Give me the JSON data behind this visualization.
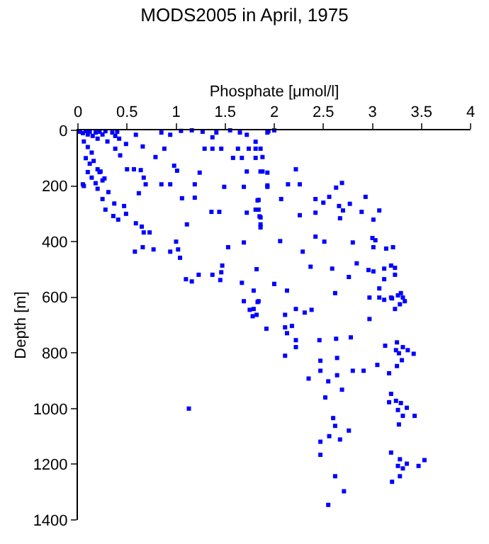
{
  "chart_data": {
    "type": "scatter",
    "title": "MODS2005 in April, 1975",
    "xlabel": "Phosphate [μmol/l]",
    "ylabel": "Depth [m]",
    "x": [
      0.02,
      0.05,
      0.08,
      0.1,
      0.12,
      0.15,
      0.18,
      0.2,
      0.22,
      0.25,
      0.28,
      0.3,
      0.35,
      0.38,
      0.4,
      0.42,
      0.06,
      0.1,
      0.14,
      0.08,
      0.12,
      0.16,
      0.2,
      0.1,
      0.14,
      0.18,
      0.22,
      0.25,
      0.2,
      0.06,
      0.05,
      0.27,
      0.23,
      0.31,
      0.25,
      0.28,
      0.37,
      0.36,
      0.41,
      0.49,
      0.47,
      0.59,
      0.65,
      0.67,
      0.73,
      0.62,
      0.67,
      0.69,
      0.64,
      0.57,
      0.5,
      0.43,
      0.38,
      0.49,
      0.59,
      0.66,
      0.85,
      0.94,
      0.88,
      0.79,
      0.98,
      1.01,
      0.94,
      0.85,
      1.06,
      1.19,
      1.19,
      1.24,
      1.11,
      1.0,
      1.02,
      0.94,
      0.77,
      0.66,
      0.58,
      1.04,
      1.1,
      1.16,
      1.23,
      1.37,
      1.45,
      1.46,
      1.36,
      1.44,
      1.49,
      1.53,
      1.47,
      1.69,
      1.67,
      1.82,
      1.79,
      1.69,
      1.84,
      2.0,
      1.84,
      1.84,
      1.72,
      1.85,
      1.86,
      1.69,
      1.93,
      1.72,
      1.86,
      1.93,
      1.58,
      1.67,
      1.81,
      1.63,
      1.74,
      1.81,
      1.65,
      1.72,
      1.93,
      2.0,
      1.55,
      1.41,
      1.27,
      1.16,
      1.05,
      1.46,
      1.37,
      1.29,
      1.37,
      1.86,
      1.94,
      1.81,
      1.88,
      1.88,
      2.22,
      1.93,
      2.14,
      2.26,
      2.07,
      1.83,
      1.81,
      1.86,
      1.86,
      2.26,
      2.42,
      2.42,
      2.5,
      2.56,
      2.63,
      2.69,
      2.66,
      2.7,
      2.67,
      2.77,
      2.93,
      2.89,
      3.07,
      3.01,
      2.06,
      2.29,
      2.42,
      2.51,
      2.8,
      3.0,
      3.03,
      3.01,
      3.14,
      3.21,
      2.84,
      2.59,
      2.37,
      2.76,
      2.96,
      3.01,
      3.12,
      3.19,
      3.23,
      3.23,
      3.12,
      3.07,
      2.0,
      2.13,
      2.62,
      2.97,
      3.07,
      3.12,
      3.19,
      3.26,
      3.29,
      3.33,
      1.83,
      1.79,
      1.82,
      1.92,
      2.11,
      2.22,
      2.31,
      2.38,
      2.11,
      2.18,
      2.13,
      2.22,
      2.22,
      2.46,
      2.63,
      2.78,
      2.11,
      2.47,
      2.64,
      2.47,
      2.35,
      2.64,
      2.55,
      2.8,
      2.91,
      2.69,
      2.52,
      3.05,
      3.13,
      3.17,
      3.25,
      3.24,
      3.27,
      3.31,
      3.36,
      3.3,
      3.42,
      3.25,
      2.97,
      3.2,
      3.23,
      3.28,
      3.31,
      3.19,
      3.17,
      3.24,
      3.29,
      3.26,
      3.35,
      3.31,
      3.43,
      3.27,
      2.6,
      2.62,
      2.76,
      2.56,
      2.67,
      2.47,
      2.47,
      3.19,
      3.28,
      3.26,
      3.35,
      3.47,
      3.53,
      3.31,
      2.62,
      2.71,
      3.28,
      3.2,
      2.55,
      1.13,
      1.75,
      1.78
    ],
    "values": [
      5,
      10,
      3,
      15,
      5,
      20,
      8,
      30,
      5,
      15,
      3,
      40,
      8,
      20,
      5,
      30,
      40,
      60,
      80,
      100,
      120,
      110,
      140,
      150,
      170,
      190,
      150,
      180,
      210,
      200,
      194,
      173,
      148,
      222,
      247,
      285,
      263,
      308,
      321,
      300,
      272,
      334,
      346,
      367,
      367,
      226,
      170,
      194,
      143,
      140,
      140,
      90,
      66,
      49,
      16,
      58,
      8,
      16,
      66,
      96,
      127,
      145,
      194,
      194,
      244,
      194,
      242,
      152,
      338,
      400,
      428,
      436,
      428,
      420,
      436,
      458,
      535,
      543,
      519,
      519,
      538,
      510,
      293,
      293,
      203,
      420,
      486,
      403,
      548,
      499,
      576,
      614,
      614,
      552,
      250,
      285,
      296,
      309,
      338,
      203,
      203,
      148,
      148,
      152,
      99,
      99,
      99,
      66,
      66,
      41,
      8,
      16,
      8,
      0,
      0,
      8,
      5,
      0,
      2,
      66,
      66,
      66,
      25,
      66,
      3,
      66,
      96,
      148,
      140,
      198,
      194,
      194,
      247,
      252,
      285,
      313,
      349,
      305,
      247,
      296,
      260,
      239,
      206,
      189,
      272,
      288,
      316,
      264,
      239,
      293,
      288,
      321,
      398,
      436,
      382,
      400,
      403,
      387,
      395,
      420,
      425,
      420,
      478,
      497,
      490,
      527,
      502,
      507,
      497,
      486,
      494,
      519,
      535,
      568,
      552,
      576,
      585,
      601,
      601,
      609,
      601,
      593,
      585,
      614,
      617,
      642,
      663,
      713,
      663,
      642,
      655,
      645,
      708,
      703,
      729,
      754,
      779,
      754,
      749,
      744,
      810,
      828,
      818,
      864,
      892,
      880,
      902,
      864,
      864,
      932,
      960,
      843,
      774,
      873,
      762,
      790,
      801,
      779,
      790,
      826,
      803,
      847,
      678,
      604,
      642,
      625,
      601,
      947,
      977,
      972,
      980,
      1005,
      997,
      1026,
      1026,
      1057,
      1034,
      1062,
      1079,
      1099,
      1111,
      1119,
      1166,
      1158,
      1182,
      1206,
      1198,
      1206,
      1185,
      1215,
      1243,
      1297,
      1243,
      1263,
      1346,
      1000,
      645,
      668
    ],
    "color": "#0000ff",
    "marker": "square",
    "xlim": [
      0,
      4
    ],
    "xticks": [
      0,
      {
        "value": 0.5,
        "label": "0.5"
      },
      1,
      {
        "value": 1.5,
        "label": "1.5"
      },
      2,
      {
        "value": 2.5,
        "label": "2.5"
      },
      3,
      {
        "value": 3.5,
        "label": "3.5"
      },
      4
    ],
    "ylim": [
      1400,
      0
    ],
    "yticks": [
      0,
      200,
      400,
      600,
      800,
      1000,
      1200,
      1400
    ]
  }
}
